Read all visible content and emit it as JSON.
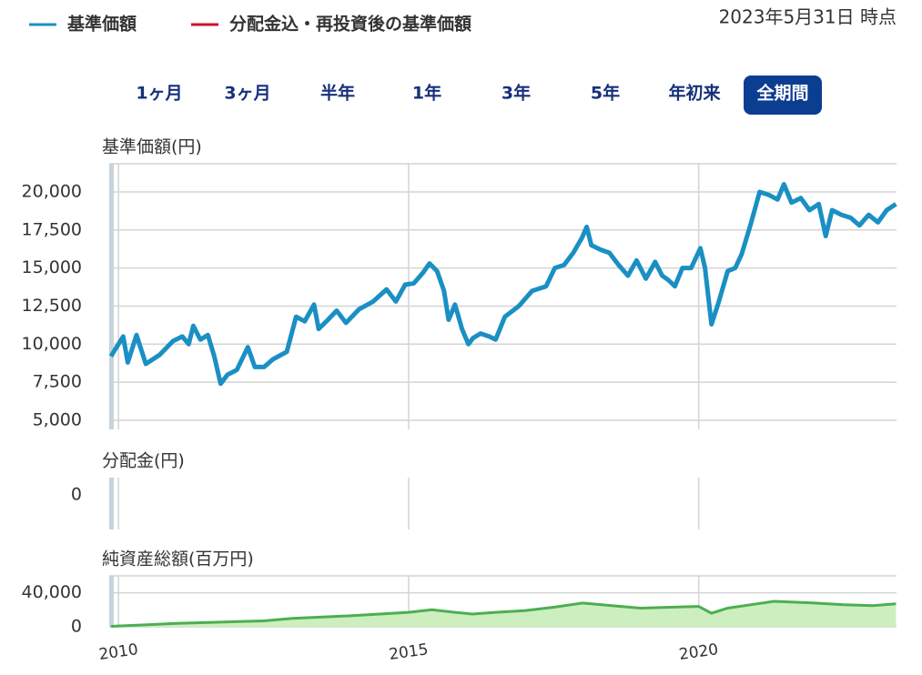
{
  "legend": [
    {
      "name": "基準価額",
      "color": "#1a8fc4"
    },
    {
      "name": "分配金込・再投資後の基準価額",
      "color": "#c8102e"
    }
  ],
  "date_label": "2023年5月31日 時点",
  "periods": [
    "1ヶ月",
    "3ヶ月",
    "半年",
    "1年",
    "3年",
    "5年",
    "年初来",
    "全期間"
  ],
  "selected_period": 7,
  "chart_data": [
    {
      "type": "line",
      "ylabel": "基準価額(円)",
      "xlim": [
        2009.84,
        2023.41
      ],
      "xticks": [
        2010,
        2015,
        2020
      ],
      "ylim": [
        4400,
        21850
      ],
      "yticks": [
        {
          "value": 5000,
          "label": "5,000"
        },
        {
          "value": 7500,
          "label": "7,500"
        },
        {
          "value": 10000,
          "label": "10,000"
        },
        {
          "value": 12500,
          "label": "12,500"
        },
        {
          "value": 15000,
          "label": "15,000"
        },
        {
          "value": 17500,
          "label": "17,500"
        },
        {
          "value": 20000,
          "label": "20,000"
        }
      ],
      "grid": true,
      "x": [
        2009.87,
        2010.08,
        2010.16,
        2010.31,
        2010.47,
        2010.71,
        2010.94,
        2011.1,
        2011.21,
        2011.29,
        2011.41,
        2011.54,
        2011.65,
        2011.76,
        2011.88,
        2012.04,
        2012.23,
        2012.35,
        2012.51,
        2012.66,
        2012.9,
        2013.06,
        2013.21,
        2013.37,
        2013.45,
        2013.61,
        2013.76,
        2013.92,
        2014.15,
        2014.39,
        2014.62,
        2014.78,
        2014.94,
        2015.09,
        2015.25,
        2015.36,
        2015.49,
        2015.61,
        2015.69,
        2015.8,
        2015.92,
        2016.03,
        2016.11,
        2016.24,
        2016.39,
        2016.5,
        2016.66,
        2016.9,
        2017.13,
        2017.37,
        2017.52,
        2017.68,
        2017.84,
        2017.99,
        2018.07,
        2018.15,
        2018.31,
        2018.46,
        2018.62,
        2018.78,
        2018.93,
        2019.09,
        2019.25,
        2019.37,
        2019.48,
        2019.59,
        2019.72,
        2019.87,
        2020.03,
        2020.11,
        2020.22,
        2020.34,
        2020.5,
        2020.63,
        2020.74,
        2020.89,
        2021.05,
        2021.21,
        2021.36,
        2021.47,
        2021.6,
        2021.76,
        2021.91,
        2022.07,
        2022.19,
        2022.3,
        2022.46,
        2022.62,
        2022.77,
        2022.93,
        2023.09,
        2023.24,
        2023.4
      ],
      "series": [
        {
          "color": "#1a8fc4",
          "values": [
            9200,
            10500,
            8800,
            10600,
            8700,
            9300,
            10200,
            10500,
            10000,
            11200,
            10300,
            10600,
            9200,
            7400,
            8000,
            8300,
            9800,
            8500,
            8500,
            9000,
            9500,
            11800,
            11500,
            12600,
            11000,
            11600,
            12200,
            11400,
            12300,
            12800,
            13600,
            12800,
            13900,
            14000,
            14700,
            15300,
            14800,
            13500,
            11600,
            12600,
            11000,
            10000,
            10400,
            10700,
            10500,
            10300,
            11800,
            12500,
            13500,
            13800,
            15000,
            15200,
            16000,
            17000,
            17700,
            16500,
            16200,
            16000,
            15200,
            14500,
            15500,
            14300,
            15400,
            14500,
            14200,
            13800,
            15000,
            15000,
            16300,
            15000,
            11300,
            12700,
            14800,
            15000,
            15900,
            17800,
            20000,
            19800,
            19500,
            20500,
            19300,
            19600,
            18800,
            19200,
            17100,
            18800,
            18500,
            18300,
            17800,
            18500,
            18000,
            18800,
            19200
          ]
        }
      ]
    },
    {
      "type": "line",
      "ylabel": "分配金(円)",
      "xlim": [
        2009.84,
        2023.41
      ],
      "xticks": [
        2010,
        2015,
        2020
      ],
      "ylim": [
        -2,
        1
      ],
      "yticks": [
        0
      ]
    },
    {
      "type": "area",
      "ylabel": "純資産総額(百万円)",
      "xlim": [
        2009.84,
        2023.41
      ],
      "xticks": [
        2010,
        2015,
        2020
      ],
      "ylim": [
        0,
        60000
      ],
      "yticks": [
        0,
        {
          "value": 40000,
          "label": "40,000"
        }
      ],
      "grid": true,
      "color": "#4caf50",
      "fill": "#cdefc0",
      "x": [
        2009.87,
        2010.5,
        2011,
        2012,
        2012.5,
        2013,
        2014,
        2015,
        2015.4,
        2015.8,
        2016.1,
        2016.5,
        2017,
        2017.5,
        2018,
        2018.5,
        2019,
        2019.5,
        2020,
        2020.22,
        2020.5,
        2021,
        2021.3,
        2022,
        2022.5,
        2023,
        2023.4
      ],
      "values": [
        500,
        2500,
        4000,
        6000,
        7000,
        10000,
        13000,
        17000,
        20000,
        17000,
        15000,
        17000,
        19000,
        23000,
        28000,
        25000,
        22000,
        23000,
        24000,
        16000,
        22000,
        27000,
        30000,
        28000,
        26000,
        25000,
        27000
      ]
    }
  ]
}
